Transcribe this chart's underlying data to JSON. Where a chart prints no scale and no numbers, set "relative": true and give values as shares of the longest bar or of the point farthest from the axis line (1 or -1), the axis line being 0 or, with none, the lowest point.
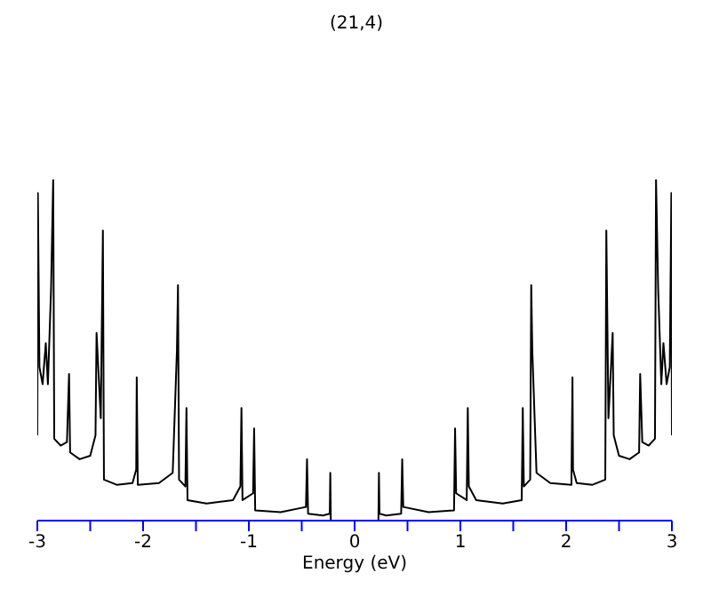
{
  "chart_data": {
    "type": "line",
    "title": "(21,4)",
    "xlabel": "Energy (eV)",
    "relative": true,
    "marker": "none",
    "line_style": "solid",
    "xlim": [
      -3,
      3
    ],
    "xticks": [
      -3,
      {
        "value": -2.5,
        "label": null
      },
      -2,
      {
        "value": -1.5,
        "label": null
      },
      -1,
      {
        "value": -0.5,
        "label": null
      },
      0,
      {
        "value": 0.5,
        "label": null
      },
      1,
      {
        "value": 1.5,
        "label": null
      },
      2,
      {
        "value": 2.5,
        "label": null
      },
      3
    ],
    "x": [
      -3.0,
      -2.995,
      -2.98,
      -2.95,
      -2.92,
      -2.9,
      -2.87,
      -2.85,
      -2.84,
      -2.78,
      -2.72,
      -2.7,
      -2.69,
      -2.6,
      -2.5,
      -2.45,
      -2.44,
      -2.4,
      -2.38,
      -2.37,
      -2.25,
      -2.1,
      -2.065,
      -2.06,
      -2.05,
      -1.85,
      -1.72,
      -1.68,
      -1.67,
      -1.66,
      -1.6,
      -1.59,
      -1.58,
      -1.4,
      -1.15,
      -1.08,
      -1.07,
      -1.06,
      -0.96,
      -0.95,
      -0.94,
      -0.7,
      -0.46,
      -0.45,
      -0.44,
      -0.3,
      -0.235,
      -0.23,
      -0.225,
      0,
      0.225,
      0.23,
      0.235,
      0.3,
      0.44,
      0.45,
      0.46,
      0.7,
      0.94,
      0.95,
      0.96,
      1.06,
      1.07,
      1.08,
      1.15,
      1.4,
      1.58,
      1.59,
      1.6,
      1.66,
      1.67,
      1.68,
      1.72,
      1.85,
      2.05,
      2.06,
      2.065,
      2.1,
      2.25,
      2.37,
      2.38,
      2.4,
      2.44,
      2.45,
      2.5,
      2.6,
      2.69,
      2.7,
      2.72,
      2.78,
      2.84,
      2.85,
      2.87,
      2.9,
      2.92,
      2.95,
      2.98,
      2.995,
      3.0
    ],
    "series": [
      {
        "color": "#000000",
        "values": [
          0.25,
          0.96,
          0.45,
          0.4,
          0.52,
          0.4,
          0.68,
          1.0,
          0.24,
          0.22,
          0.23,
          0.43,
          0.2,
          0.18,
          0.19,
          0.25,
          0.55,
          0.3,
          0.85,
          0.12,
          0.105,
          0.11,
          0.15,
          0.42,
          0.105,
          0.11,
          0.14,
          0.5,
          0.69,
          0.12,
          0.1,
          0.33,
          0.06,
          0.05,
          0.06,
          0.1,
          0.33,
          0.06,
          0.08,
          0.27,
          0.03,
          0.025,
          0.04,
          0.18,
          0.02,
          0.015,
          0.02,
          0.14,
          0,
          0,
          0,
          0.14,
          0.02,
          0.015,
          0.02,
          0.18,
          0.04,
          0.025,
          0.03,
          0.27,
          0.08,
          0.06,
          0.33,
          0.1,
          0.06,
          0.05,
          0.06,
          0.33,
          0.1,
          0.12,
          0.69,
          0.5,
          0.14,
          0.11,
          0.105,
          0.42,
          0.15,
          0.11,
          0.105,
          0.12,
          0.85,
          0.3,
          0.55,
          0.25,
          0.19,
          0.18,
          0.2,
          0.43,
          0.23,
          0.22,
          0.24,
          1.0,
          0.68,
          0.4,
          0.52,
          0.4,
          0.45,
          0.96,
          0.25
        ]
      }
    ]
  }
}
